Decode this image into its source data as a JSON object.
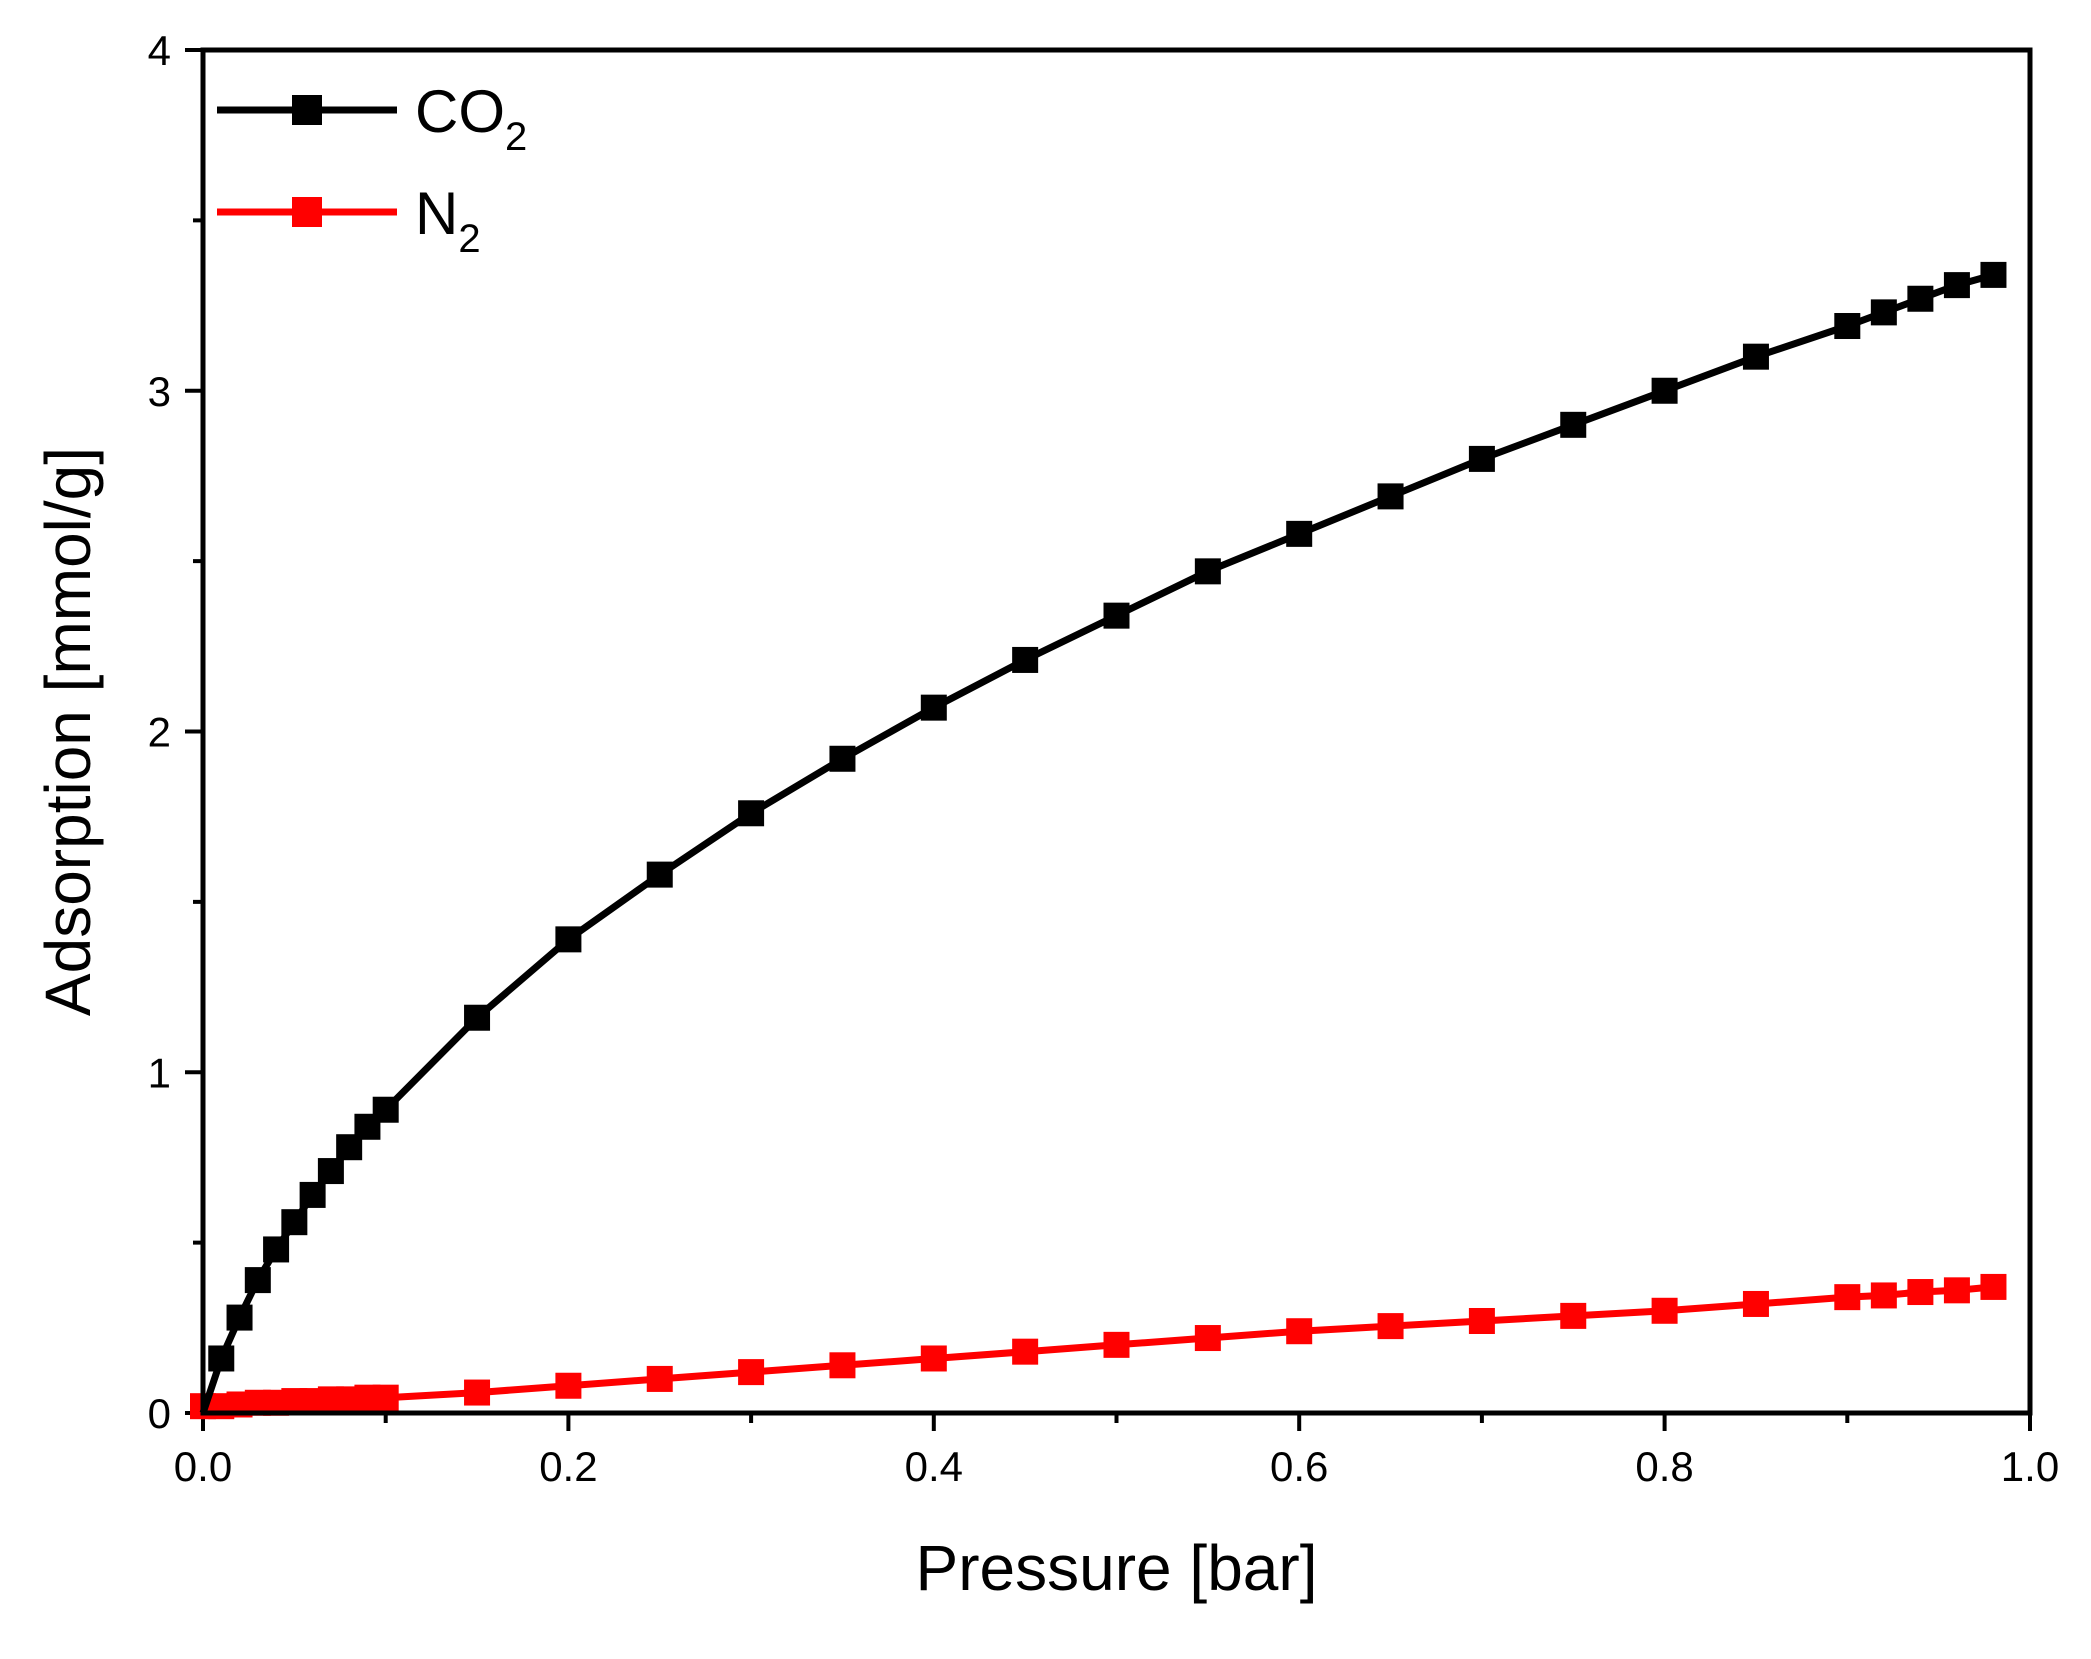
{
  "chart_data": {
    "type": "line",
    "title": "",
    "xlabel": "Pressure [bar]",
    "ylabel": "Adsorption [mmol/g]",
    "xlim": [
      0.0,
      1.0
    ],
    "ylim": [
      0,
      4
    ],
    "x_ticks": [
      0.0,
      0.2,
      0.4,
      0.6,
      0.8,
      1.0
    ],
    "x_tick_labels": [
      "0.0",
      "0.2",
      "0.4",
      "0.6",
      "0.8",
      "1.0"
    ],
    "y_ticks": [
      0,
      1,
      2,
      3,
      4
    ],
    "y_tick_labels": [
      "0",
      "1",
      "2",
      "3",
      "4"
    ],
    "y_minor_ticks": [
      0.5,
      1.5,
      2.5,
      3.5
    ],
    "grid": false,
    "legend_position": "top-left",
    "series": [
      {
        "name": "CO2",
        "legend_main": "CO",
        "legend_sub": "2",
        "color": "#000000",
        "marker": "square",
        "x": [
          0.0,
          0.01,
          0.02,
          0.03,
          0.04,
          0.05,
          0.06,
          0.07,
          0.08,
          0.09,
          0.1,
          0.15,
          0.2,
          0.25,
          0.3,
          0.35,
          0.4,
          0.45,
          0.5,
          0.55,
          0.6,
          0.65,
          0.7,
          0.75,
          0.8,
          0.85,
          0.9,
          0.92,
          0.94,
          0.96,
          0.98
        ],
        "y": [
          0.0,
          0.16,
          0.28,
          0.39,
          0.48,
          0.56,
          0.64,
          0.71,
          0.78,
          0.84,
          0.89,
          1.16,
          1.39,
          1.58,
          1.76,
          1.92,
          2.07,
          2.21,
          2.34,
          2.47,
          2.58,
          2.69,
          2.8,
          2.9,
          3.0,
          3.1,
          3.19,
          3.23,
          3.27,
          3.31,
          3.34
        ]
      },
      {
        "name": "N2",
        "legend_main": "N",
        "legend_sub": "2",
        "color": "#ff0000",
        "marker": "square",
        "x": [
          0.0,
          0.01,
          0.02,
          0.03,
          0.04,
          0.05,
          0.06,
          0.07,
          0.08,
          0.09,
          0.1,
          0.15,
          0.2,
          0.25,
          0.3,
          0.35,
          0.4,
          0.45,
          0.5,
          0.55,
          0.6,
          0.65,
          0.7,
          0.75,
          0.8,
          0.85,
          0.9,
          0.92,
          0.94,
          0.96,
          0.98
        ],
        "y": [
          0.02,
          0.02,
          0.025,
          0.03,
          0.03,
          0.035,
          0.035,
          0.04,
          0.04,
          0.045,
          0.045,
          0.06,
          0.08,
          0.1,
          0.12,
          0.14,
          0.16,
          0.18,
          0.2,
          0.22,
          0.24,
          0.255,
          0.27,
          0.285,
          0.3,
          0.32,
          0.34,
          0.345,
          0.355,
          0.36,
          0.37
        ]
      }
    ]
  }
}
